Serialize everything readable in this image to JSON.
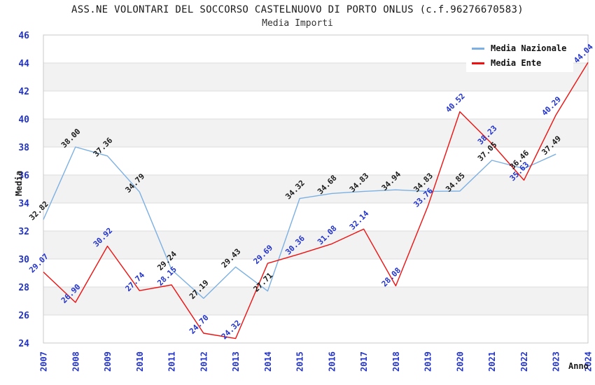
{
  "title": "ASS.NE VOLONTARI DEL SOCCORSO CASTELNUOVO DI PORTO ONLUS (c.f.96276670583)",
  "subtitle": "Media Importi",
  "legend": {
    "items": [
      {
        "label": "Media Nazionale",
        "color": "#7cb0e2"
      },
      {
        "label": "Media Ente",
        "color": "#ee1111"
      }
    ]
  },
  "chart_data": {
    "type": "line",
    "x": [
      "2007",
      "2008",
      "2009",
      "2010",
      "2011",
      "2012",
      "2013",
      "2014",
      "2015",
      "2016",
      "2017",
      "2018",
      "2019",
      "2020",
      "2021",
      "2022",
      "2023",
      "2024"
    ],
    "xlabel": "Anno",
    "ylabel": "Media",
    "ylim": [
      24,
      46
    ],
    "ytick_step": 2,
    "grid": "horizontal-bands",
    "legend_position": "top-right",
    "band_colors": [
      "#ffffff",
      "#f2f2f2"
    ],
    "gridline_color": "#dcdcdc",
    "border_color": "#c9c9c9",
    "tick_label_color": "#2233cc",
    "axis_title_color": "#1a1a1a",
    "series": [
      {
        "name": "Media Nazionale",
        "color": "#7cb0e2",
        "label_color": "#1a1a1a",
        "values": [
          "32.82",
          "38.00",
          "37.36",
          "34.79",
          "29.24",
          "27.19",
          "29.43",
          "27.71",
          "34.32",
          "34.68",
          "34.83",
          "34.94",
          "34.83",
          "34.85",
          "37.05",
          "36.46",
          "37.49",
          null
        ]
      },
      {
        "name": "Media Ente",
        "color": "#ee1111",
        "label_color": "#2233cc",
        "values": [
          "29.07",
          "26.90",
          "30.92",
          "27.74",
          "28.15",
          "24.70",
          "24.32",
          "29.69",
          "30.36",
          "31.08",
          "32.14",
          "28.08",
          "33.76",
          "40.52",
          "38.23",
          "35.63",
          "40.29",
          "44.04"
        ]
      }
    ]
  }
}
